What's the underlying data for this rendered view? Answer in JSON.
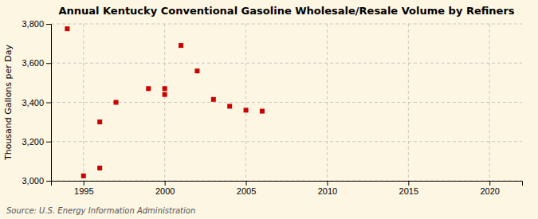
{
  "chart_data": {
    "type": "scatter",
    "title": "Annual Kentucky Conventional Gasoline Wholesale/Resale Volume by Refiners",
    "ylabel": "Thousand Gallons per Day",
    "annotation": "Source: U.S. Energy Information Administration",
    "x": [
      1994,
      1995,
      1996,
      1996,
      1997,
      1999,
      2000,
      2000,
      2001,
      2002,
      2003,
      2004,
      2005,
      2006
    ],
    "values": [
      3775,
      3025,
      3065,
      3300,
      3400,
      3470,
      3440,
      3470,
      3690,
      3560,
      3415,
      3380,
      3360,
      3355
    ],
    "color": "#cc0000",
    "marker": "square",
    "xlim": [
      1993,
      2022
    ],
    "ylim": [
      3000,
      3800
    ],
    "xticks": [
      1995,
      2000,
      2005,
      2010,
      2015,
      2020
    ],
    "yticks": [
      {
        "value": 3000,
        "label": "3,000"
      },
      {
        "value": 3200,
        "label": "3,200"
      },
      {
        "value": 3400,
        "label": "3,400"
      },
      {
        "value": 3600,
        "label": "3,600"
      },
      {
        "value": 3800,
        "label": "3,800"
      }
    ],
    "grid": true
  }
}
